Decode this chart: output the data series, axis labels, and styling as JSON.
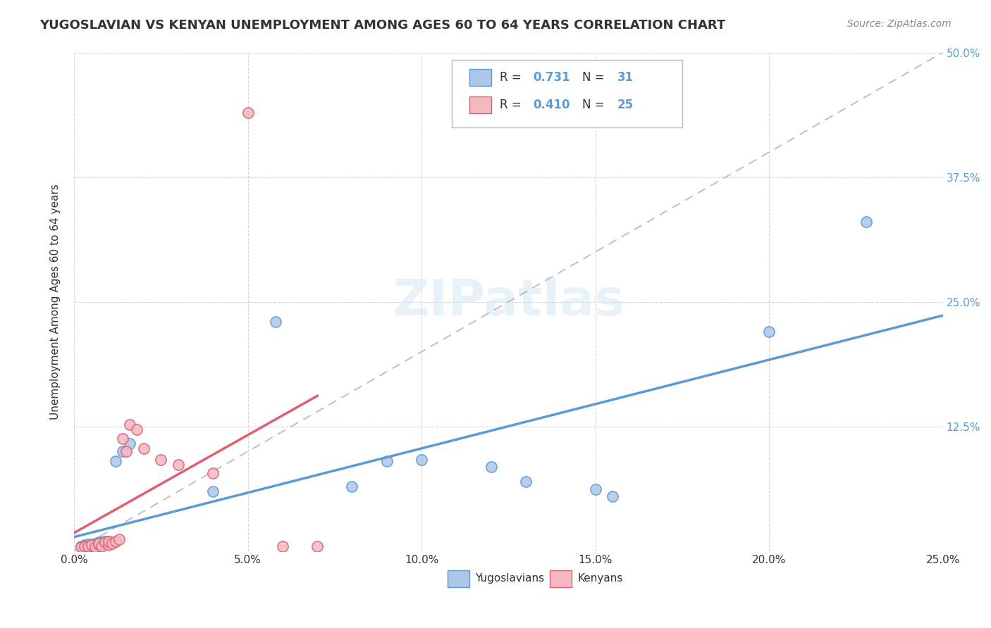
{
  "title": "YUGOSLAVIAN VS KENYAN UNEMPLOYMENT AMONG AGES 60 TO 64 YEARS CORRELATION CHART",
  "source": "Source: ZipAtlas.com",
  "xlabel": "",
  "ylabel": "Unemployment Among Ages 60 to 64 years",
  "xlim": [
    0.0,
    0.25
  ],
  "ylim": [
    0.0,
    0.5
  ],
  "blue_color": "#aec6e8",
  "blue_edge_color": "#5b9bd5",
  "pink_color": "#f4b8c1",
  "pink_edge_color": "#e06070",
  "watermark": "ZIPatlas",
  "blue_R": "0.731",
  "blue_N": "31",
  "pink_R": "0.410",
  "pink_N": "25",
  "yugoslavian_x": [
    0.002,
    0.003,
    0.003,
    0.004,
    0.004,
    0.005,
    0.005,
    0.006,
    0.006,
    0.007,
    0.007,
    0.008,
    0.008,
    0.009,
    0.009,
    0.01,
    0.01,
    0.012,
    0.014,
    0.016,
    0.04,
    0.058,
    0.08,
    0.09,
    0.1,
    0.12,
    0.13,
    0.15,
    0.155,
    0.2,
    0.228
  ],
  "yugoslavian_y": [
    0.005,
    0.004,
    0.006,
    0.005,
    0.007,
    0.004,
    0.007,
    0.006,
    0.008,
    0.005,
    0.009,
    0.006,
    0.009,
    0.007,
    0.01,
    0.008,
    0.01,
    0.09,
    0.1,
    0.108,
    0.06,
    0.23,
    0.065,
    0.09,
    0.092,
    0.085,
    0.07,
    0.062,
    0.055,
    0.22,
    0.33
  ],
  "kenyan_x": [
    0.002,
    0.003,
    0.004,
    0.005,
    0.006,
    0.007,
    0.007,
    0.008,
    0.009,
    0.01,
    0.01,
    0.011,
    0.012,
    0.013,
    0.014,
    0.015,
    0.016,
    0.018,
    0.02,
    0.025,
    0.03,
    0.04,
    0.05,
    0.06,
    0.07
  ],
  "kenyan_y": [
    0.004,
    0.005,
    0.005,
    0.006,
    0.004,
    0.007,
    0.008,
    0.005,
    0.009,
    0.006,
    0.01,
    0.008,
    0.01,
    0.012,
    0.113,
    0.1,
    0.127,
    0.122,
    0.103,
    0.092,
    0.087,
    0.078,
    0.44,
    0.005,
    0.005
  ]
}
